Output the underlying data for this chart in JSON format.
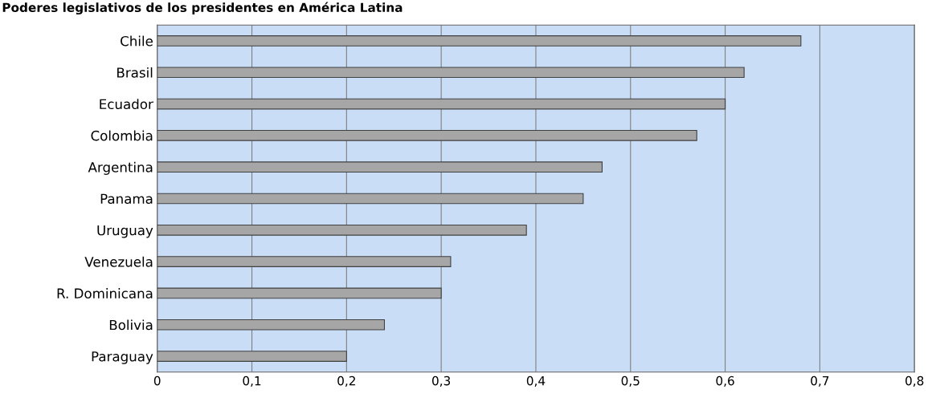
{
  "chart_data": {
    "type": "bar",
    "orientation": "horizontal",
    "title": "Poderes legislativos de los presidentes en América Latina",
    "categories": [
      "Chile",
      "Brasil",
      "Ecuador",
      "Colombia",
      "Argentina",
      "Panama",
      "Uruguay",
      "Venezuela",
      "R. Dominicana",
      "Bolivia",
      "Paraguay"
    ],
    "values": [
      0.68,
      0.62,
      0.6,
      0.57,
      0.47,
      0.45,
      0.39,
      0.31,
      0.3,
      0.24,
      0.2
    ],
    "color": "#a6a6a6",
    "xlim": [
      0,
      0.8
    ],
    "xticks": [
      {
        "value": 0,
        "label": "0"
      },
      {
        "value": 0.1,
        "label": "0,1"
      },
      {
        "value": 0.2,
        "label": "0,2"
      },
      {
        "value": 0.3,
        "label": "0,3"
      },
      {
        "value": 0.4,
        "label": "0,4"
      },
      {
        "value": 0.5,
        "label": "0,5"
      },
      {
        "value": 0.6,
        "label": "0,6"
      },
      {
        "value": 0.7,
        "label": "0,7"
      },
      {
        "value": 0.8,
        "label": "0,8"
      }
    ],
    "grid": "x"
  }
}
